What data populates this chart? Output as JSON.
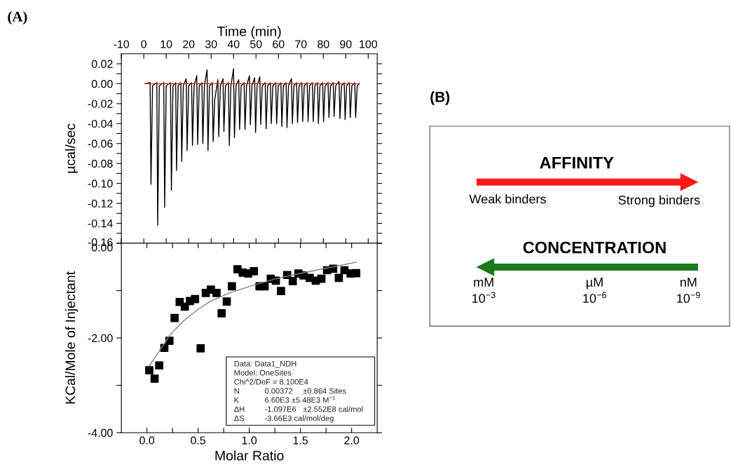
{
  "chart_data": [
    {
      "type": "line",
      "xlabel": "Time (min)",
      "ylabel": "µcal/sec",
      "annotations": [
        "(A)"
      ],
      "xlim": [
        -10,
        104
      ],
      "ylim": [
        -0.16,
        0.03
      ],
      "xticks": [
        -10,
        0,
        10,
        20,
        30,
        40,
        50,
        60,
        70,
        80,
        90,
        100
      ],
      "yticks": [
        {
          "value": 0.02,
          "label": "0.02"
        },
        {
          "value": 0.01,
          "label": null
        },
        {
          "value": 0,
          "label": "0.00"
        },
        {
          "value": -0.01,
          "label": null
        },
        {
          "value": -0.02,
          "label": "-0.02"
        },
        {
          "value": -0.03,
          "label": null
        },
        {
          "value": -0.04,
          "label": "-0.04"
        },
        {
          "value": -0.05,
          "label": null
        },
        {
          "value": -0.06,
          "label": "-0.06"
        },
        {
          "value": -0.07,
          "label": null
        },
        {
          "value": -0.08,
          "label": "-0.08"
        },
        {
          "value": -0.09,
          "label": null
        },
        {
          "value": -0.1,
          "label": "-0.10"
        },
        {
          "value": -0.11,
          "label": null
        },
        {
          "value": -0.12,
          "label": "-0.12"
        },
        {
          "value": -0.13,
          "label": null
        },
        {
          "value": -0.14,
          "label": "-0.14"
        },
        {
          "value": -0.15,
          "label": null
        },
        {
          "value": -0.16,
          "label": "-0.16"
        }
      ],
      "series": [
        {
          "type": "line",
          "color": "#000000",
          "x": [
            0.5,
            2.8,
            3.2,
            3.9,
            5.8,
            6.2,
            6.9,
            8.9,
            9.3,
            10.0,
            11.9,
            12.3,
            13.0,
            14.2,
            14.6,
            15.3,
            16.5,
            16.9,
            17.6,
            18.9,
            19.3,
            20.0,
            21.3,
            21.7,
            22.4,
            23.6,
            24.0,
            24.7,
            25.9,
            26.3,
            27.0,
            28.2,
            28.6,
            29.3,
            30.5,
            30.9,
            31.6,
            33.0,
            33.4,
            34.1,
            35.3,
            35.7,
            36.4,
            37.7,
            38.1,
            38.8,
            40.0,
            40.4,
            41.1,
            42.3,
            42.7,
            43.4,
            44.7,
            45.1,
            45.8,
            47.1,
            47.5,
            48.2,
            49.4,
            49.8,
            50.5,
            51.7,
            52.1,
            52.8,
            54.1,
            54.5,
            55.2,
            56.4,
            56.8,
            57.5,
            58.8,
            59.2,
            59.9,
            61.1,
            61.5,
            62.2,
            63.4,
            63.8,
            64.5,
            65.8,
            66.2,
            66.9,
            68.1,
            68.5,
            69.2,
            70.4,
            70.8,
            71.5,
            72.8,
            73.2,
            73.9,
            75.1,
            75.5,
            76.2,
            77.4,
            77.8,
            78.5,
            79.7,
            80.1,
            80.8,
            82.1,
            82.5,
            83.2,
            84.4,
            84.8,
            85.5,
            87.0,
            87.4,
            88.1,
            89.3,
            89.7,
            90.4,
            91.6,
            92.0,
            92.7,
            94.0,
            94.4,
            95.1,
            96.0
          ],
          "values": [
            0.0,
            0.001,
            -0.101,
            -0.002,
            0.001,
            -0.142,
            -0.002,
            0.001,
            -0.124,
            -0.002,
            0.001,
            -0.107,
            -0.002,
            0.001,
            -0.087,
            -0.002,
            0.001,
            -0.078,
            -0.002,
            0.005,
            -0.067,
            -0.002,
            0.001,
            -0.062,
            -0.002,
            0.008,
            -0.061,
            -0.002,
            0.001,
            -0.06,
            -0.002,
            0.014,
            -0.067,
            -0.002,
            0.001,
            -0.058,
            -0.016,
            0.004,
            -0.053,
            -0.002,
            0.005,
            -0.048,
            -0.002,
            0.001,
            -0.062,
            -0.002,
            0.015,
            -0.054,
            -0.002,
            0.004,
            -0.046,
            -0.002,
            0.001,
            -0.046,
            -0.002,
            0.008,
            -0.041,
            -0.002,
            0.006,
            -0.049,
            -0.002,
            0.007,
            -0.041,
            -0.002,
            0.001,
            -0.045,
            -0.002,
            0.001,
            -0.04,
            -0.002,
            0.001,
            -0.04,
            -0.002,
            0.001,
            -0.043,
            -0.002,
            0.001,
            -0.044,
            -0.002,
            0.005,
            -0.04,
            -0.002,
            0.001,
            -0.039,
            -0.002,
            0.001,
            -0.038,
            -0.002,
            0.001,
            -0.038,
            -0.002,
            0.001,
            -0.038,
            -0.002,
            0.001,
            -0.04,
            -0.002,
            0.001,
            -0.038,
            -0.002,
            0.001,
            -0.034,
            -0.002,
            0.001,
            -0.033,
            -0.002,
            0.002,
            -0.035,
            -0.002,
            0.001,
            -0.036,
            -0.002,
            0.001,
            -0.034,
            -0.002,
            0.001,
            -0.034,
            -0.002,
            0.0
          ]
        },
        {
          "type": "line",
          "color": "#d62728",
          "x": [
            0.5,
            96.0
          ],
          "values": [
            0,
            0
          ]
        }
      ]
    },
    {
      "type": "scatter",
      "xlabel": "Molar Ratio",
      "ylabel": "KCal/Mole of Injectant",
      "xlim": [
        -0.25,
        2.25
      ],
      "ylim": [
        -4,
        0
      ],
      "xticks": [
        {
          "value": 0,
          "label": "0.0"
        },
        {
          "value": 0.25,
          "label": null
        },
        {
          "value": 0.5,
          "label": "0.5"
        },
        {
          "value": 0.75,
          "label": null
        },
        {
          "value": 1,
          "label": "1.0"
        },
        {
          "value": 1.25,
          "label": null
        },
        {
          "value": 1.5,
          "label": "1.5"
        },
        {
          "value": 1.75,
          "label": null
        },
        {
          "value": 2,
          "label": "2.0"
        }
      ],
      "yticks": [
        {
          "value": 0,
          "label": "0.00"
        },
        {
          "value": -1,
          "label": null
        },
        {
          "value": -2,
          "label": "-2.00"
        },
        {
          "value": -3,
          "label": null
        },
        {
          "value": -4,
          "label": "-4.00"
        }
      ],
      "annotations": [
        "Data: Data1_NDH",
        "Model: OneSites",
        "Chi^2/DoF = 8.100E4",
        "N\t0.00372\t±0.864 Sites",
        "K\t6.60E3 ±5.48E3 M$^{−1}$",
        "ΔH\t-1.097E6\t±2.552E8 cal/mol",
        "ΔS\t-3.66E3 cal/mol/deg"
      ],
      "series": [
        {
          "type": "scatter",
          "color": "#000000",
          "marker": "square",
          "x": [
            0.023,
            0.075,
            0.12,
            0.17,
            0.22,
            0.27,
            0.32,
            0.37,
            0.42,
            0.47,
            0.525,
            0.575,
            0.625,
            0.68,
            0.73,
            0.78,
            0.83,
            0.885,
            0.935,
            0.99,
            1.045,
            1.1,
            1.15,
            1.21,
            1.26,
            1.31,
            1.37,
            1.425,
            1.48,
            1.53,
            1.59,
            1.65,
            1.705,
            1.76,
            1.82,
            1.875,
            1.93,
            1.99,
            2.045
          ],
          "values": [
            -2.68,
            -2.86,
            -2.58,
            -2.21,
            -2.06,
            -1.58,
            -1.24,
            -1.34,
            -1.22,
            -1.18,
            -2.22,
            -1.05,
            -0.98,
            -1.05,
            -1.48,
            -1.23,
            -0.91,
            -0.55,
            -0.62,
            -0.64,
            -0.59,
            -0.91,
            -0.91,
            -0.75,
            -0.79,
            -1.01,
            -0.67,
            -0.8,
            -0.64,
            -0.68,
            -0.73,
            -0.79,
            -0.75,
            -0.57,
            -0.54,
            -0.73,
            -0.57,
            -0.64,
            -0.63
          ]
        },
        {
          "type": "line",
          "color": "#808080",
          "x": [
            0.023,
            0.125,
            0.227,
            0.352,
            0.489,
            0.625,
            0.807,
            1.034,
            1.26,
            1.49,
            1.72,
            2.045
          ],
          "values": [
            -2.59,
            -2.26,
            -1.93,
            -1.65,
            -1.41,
            -1.22,
            -1.05,
            -0.89,
            -0.75,
            -0.64,
            -0.54,
            -0.4
          ]
        }
      ]
    },
    {
      "type": "other",
      "annotations": [
        "(B)",
        "AFFINITY",
        "Weak binders",
        "Strong binders",
        "CONCENTRATION",
        "mM",
        "µM",
        "nM",
        "10$^{−3}$",
        "10$^{−6}$",
        "10$^{−9}$"
      ]
    }
  ]
}
